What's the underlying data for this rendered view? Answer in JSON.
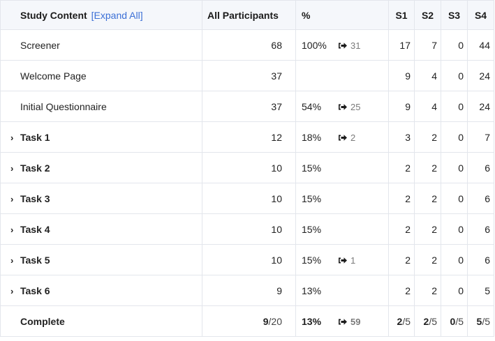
{
  "header": {
    "study_content": "Study Content",
    "expand_all": "[Expand All]",
    "all_participants": "All Participants",
    "percent": "%",
    "s1": "S1",
    "s2": "S2",
    "s3": "S3",
    "s4": "S4"
  },
  "rows": [
    {
      "name": "Screener",
      "all": "68",
      "pct": "100%",
      "exits": "31",
      "s1": "17",
      "s2": "7",
      "s3": "0",
      "s4": "44"
    },
    {
      "name": "Welcome Page",
      "all": "37",
      "pct": "",
      "exits": "",
      "s1": "9",
      "s2": "4",
      "s3": "0",
      "s4": "24"
    },
    {
      "name": "Initial Questionnaire",
      "all": "37",
      "pct": "54%",
      "exits": "25",
      "s1": "9",
      "s2": "4",
      "s3": "0",
      "s4": "24"
    }
  ],
  "tasks": [
    {
      "name": "Task 1",
      "all": "12",
      "pct": "18%",
      "exits": "2",
      "s1": "3",
      "s2": "2",
      "s3": "0",
      "s4": "7"
    },
    {
      "name": "Task 2",
      "all": "10",
      "pct": "15%",
      "exits": "",
      "s1": "2",
      "s2": "2",
      "s3": "0",
      "s4": "6"
    },
    {
      "name": "Task 3",
      "all": "10",
      "pct": "15%",
      "exits": "",
      "s1": "2",
      "s2": "2",
      "s3": "0",
      "s4": "6"
    },
    {
      "name": "Task 4",
      "all": "10",
      "pct": "15%",
      "exits": "",
      "s1": "2",
      "s2": "2",
      "s3": "0",
      "s4": "6"
    },
    {
      "name": "Task 5",
      "all": "10",
      "pct": "15%",
      "exits": "1",
      "s1": "2",
      "s2": "2",
      "s3": "0",
      "s4": "6"
    },
    {
      "name": "Task 6",
      "all": "9",
      "pct": "13%",
      "exits": "",
      "s1": "2",
      "s2": "2",
      "s3": "0",
      "s4": "5"
    }
  ],
  "complete": {
    "name": "Complete",
    "all_num": "9",
    "all_den": "/20",
    "pct": "13%",
    "exits": "59",
    "s1_num": "2",
    "s2_num": "2",
    "s3_num": "0",
    "s4_num": "5",
    "s_den": "/5"
  },
  "icons": {
    "chevron": "›",
    "exit": "exit-icon"
  },
  "colors": {
    "link": "#3b6fd6",
    "header_bg": "#f5f7fb",
    "border": "#e3e6ec"
  }
}
